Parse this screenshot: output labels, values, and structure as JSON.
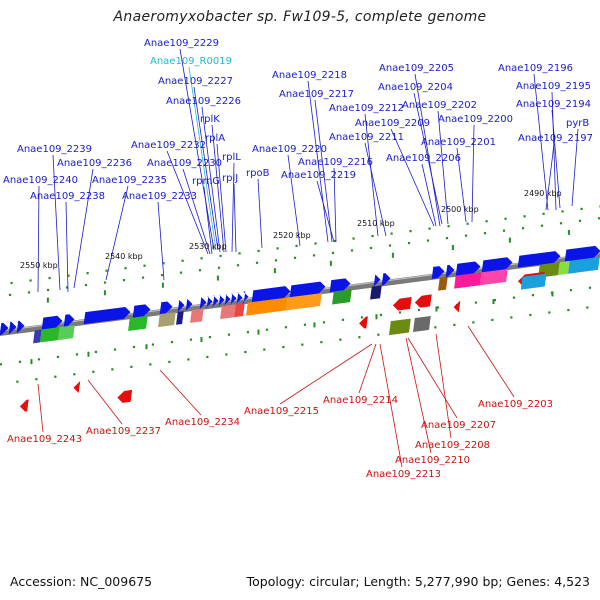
{
  "title": "Anaeromyxobacter sp. Fw109-5, complete genome",
  "footer": {
    "accession": "Accession: NC_009675",
    "summary": "Topology: circular; Length: 5,277,990 bp; Genes: 4,523"
  },
  "colors": {
    "forward_label": "#1b1bc8",
    "reverse_label": "#cc1111",
    "rna_label": "#22b8d0",
    "backbone": "#777777",
    "forward_arrow": "#0a14e6",
    "reverse_arrow": "#e60d0d"
  },
  "scale_labels": [
    "2550 kbp",
    "2540 kbp",
    "2530 kbp",
    "2520 kbp",
    "2510 kbp",
    "2500 kbp",
    "2490 kbp"
  ],
  "forward_labels": [
    "Anae109_2229",
    "Anae109_R0019",
    "Anae109_2227",
    "Anae109_2226",
    "rplK",
    "rplA",
    "Anae109_2232",
    "rplL",
    "Anae109_2230",
    "rpmG",
    "rplJ",
    "rpoB",
    "Anae109_2220",
    "Anae109_2218",
    "Anae109_2217",
    "Anae109_2212",
    "Anae109_2216",
    "Anae109_2219",
    "Anae109_2211",
    "Anae109_2209",
    "Anae109_2205",
    "Anae109_2204",
    "Anae109_2202",
    "Anae109_2200",
    "Anae109_2201",
    "Anae109_2206",
    "Anae109_2196",
    "Anae109_2195",
    "Anae109_2194",
    "pyrB",
    "Anae109_2197",
    "Anae109_2239",
    "Anae109_2236",
    "Anae109_2240",
    "Anae109_2235",
    "Anae109_2238",
    "Anae109_2233"
  ],
  "reverse_labels": [
    "Anae109_2243",
    "Anae109_2237",
    "Anae109_2234",
    "Anae109_2215",
    "Anae109_2214",
    "Anae109_2207",
    "Anae109_2203",
    "Anae109_2208",
    "Anae109_2210",
    "Anae109_2213"
  ]
}
